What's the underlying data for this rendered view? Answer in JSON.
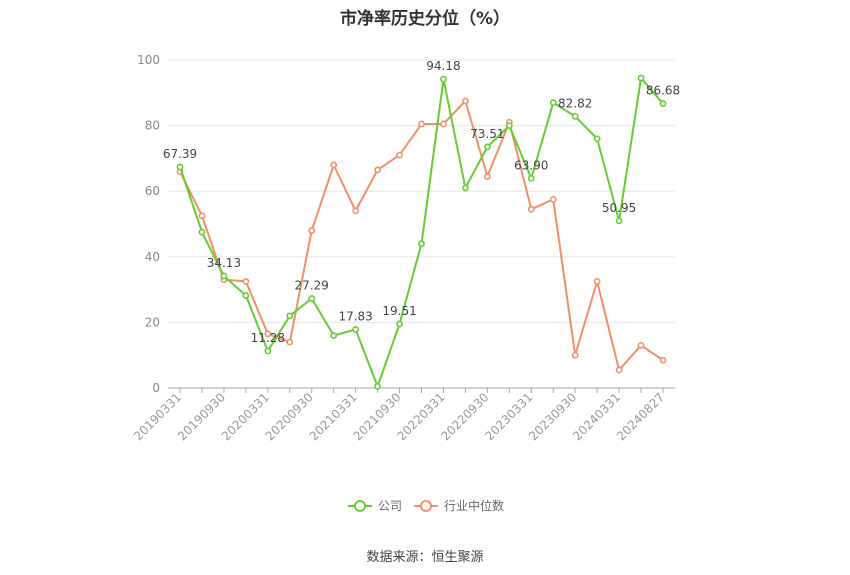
{
  "chart_data": {
    "type": "line",
    "title": "市净率历史分位（%）",
    "xlabel": "",
    "ylabel": "",
    "ylim": [
      0,
      100
    ],
    "yticks": [
      0,
      20,
      40,
      60,
      80,
      100
    ],
    "grid": true,
    "legend_position": "bottom-center",
    "x": [
      "20190331",
      "20190630",
      "20190930",
      "20191231",
      "20200331",
      "20200630",
      "20200930",
      "20201231",
      "20210331",
      "20210630",
      "20210930",
      "20211231",
      "20220331",
      "20220630",
      "20220930",
      "20221231",
      "20230331",
      "20230630",
      "20230930",
      "20231231",
      "20240331",
      "20240630",
      "20240827"
    ],
    "x_tick_labels": [
      "20190331",
      "20190930",
      "20200331",
      "20200930",
      "20210331",
      "20210930",
      "20220331",
      "20220930",
      "20230331",
      "20230930",
      "20240331",
      "20240827"
    ],
    "series": [
      {
        "name": "公司",
        "color": "#66cc33",
        "values": [
          67.39,
          47.5,
          34.13,
          28.2,
          11.28,
          22.0,
          27.29,
          16.0,
          17.83,
          0.5,
          19.51,
          44.0,
          94.18,
          61.0,
          73.51,
          80.0,
          63.9,
          87.0,
          82.82,
          76.0,
          50.95,
          94.5,
          86.68
        ],
        "labels": {
          "0": "67.39",
          "2": "34.13",
          "4": "11.28",
          "6": "27.29",
          "8": "17.83",
          "10": "19.51",
          "12": "94.18",
          "14": "73.51",
          "16": "63.90",
          "18": "82.82",
          "20": "50.95",
          "22": "86.68"
        }
      },
      {
        "name": "行业中位数",
        "color": "#f0906a",
        "values": [
          66.0,
          52.5,
          33.0,
          32.5,
          16.5,
          14.0,
          48.0,
          68.0,
          54.0,
          66.5,
          71.0,
          80.5,
          80.5,
          87.5,
          64.5,
          81.0,
          54.5,
          57.5,
          10.0,
          32.5,
          5.5,
          13.0,
          8.5
        ]
      }
    ]
  },
  "source_text": "数据来源：恒生聚源"
}
